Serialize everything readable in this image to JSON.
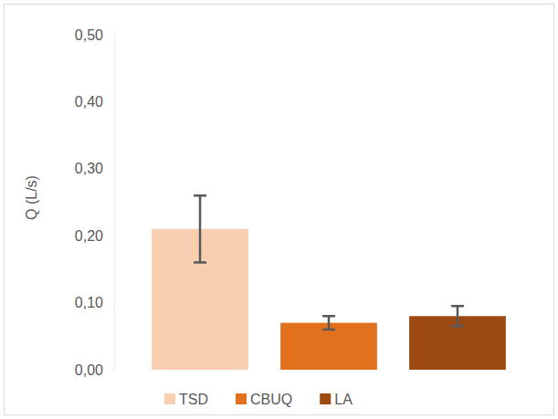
{
  "chart_data": {
    "type": "bar",
    "y_label": "Q (L/s)",
    "categories": [
      "TSD",
      "CBUQ",
      "LA"
    ],
    "values": [
      0.21,
      0.07,
      0.08
    ],
    "errors": [
      0.05,
      0.01,
      0.015
    ],
    "colors": [
      "#f9cfb2",
      "#e2711d",
      "#9c4a12"
    ],
    "ylim": [
      0,
      0.5
    ],
    "yticks": [
      {
        "value": 0,
        "label": "0,00"
      },
      {
        "value": 0.1,
        "label": "0,10"
      },
      {
        "value": 0.2,
        "label": "0,20"
      },
      {
        "value": 0.3,
        "label": "0,30"
      },
      {
        "value": 0.4,
        "label": "0,40"
      },
      {
        "value": 0.5,
        "label": "0,50"
      }
    ],
    "grid": false,
    "legend": "bottom",
    "tick_labels": "y"
  }
}
